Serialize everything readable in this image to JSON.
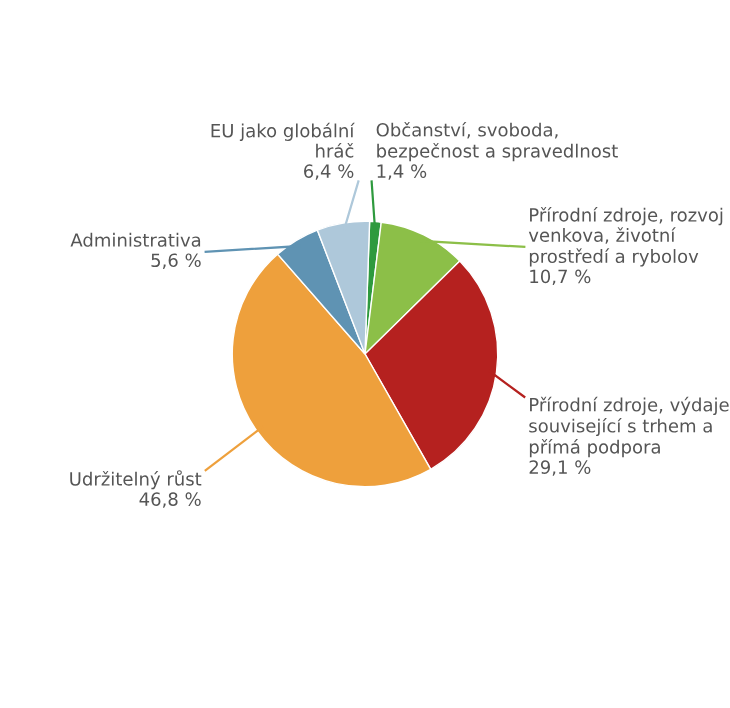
{
  "chart_data": {
    "type": "pie",
    "categories": [
      "Občanství, svoboda,\nbezpečnost a spravedlnost",
      "Přírodní zdroje, rozvoj\nvenkova, životní\nprostředí a rybolov",
      "Přírodní zdroje, výdaje\nsouvisející s trhem a\npřímá podpora",
      "Udržitelný růst",
      "Administrativa",
      "EU jako globální\nhráč"
    ],
    "values": [
      1.4,
      10.7,
      29.1,
      46.8,
      5.6,
      6.4
    ],
    "value_labels": [
      "1,4 %",
      "10,7 %",
      "29,1 %",
      "46,8 %",
      "5,6 %",
      "6,4 %"
    ],
    "colors": [
      "#2e9a3e",
      "#8cbf48",
      "#b5211f",
      "#eea03c",
      "#5f93b3",
      "#aec8da"
    ],
    "legend": false
  }
}
